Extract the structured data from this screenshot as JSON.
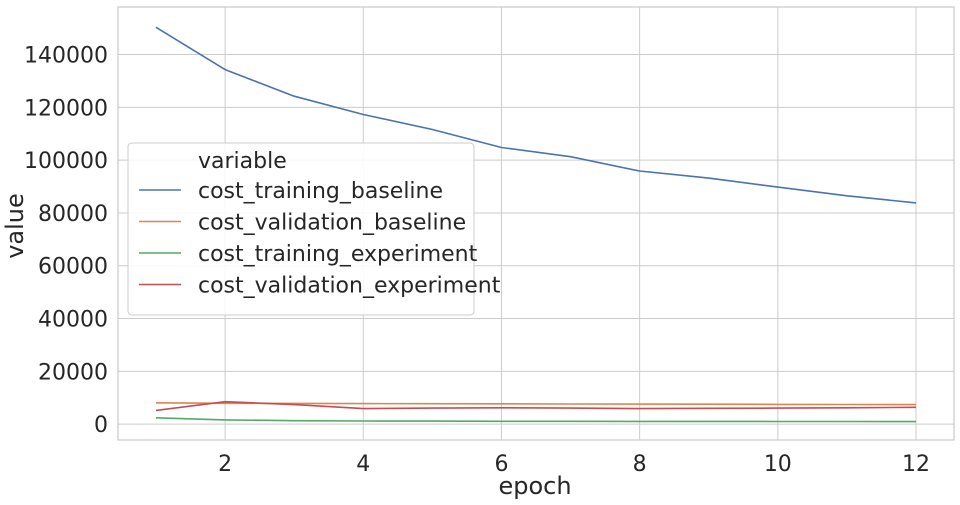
{
  "chart_data": {
    "type": "line",
    "xlabel": "epoch",
    "ylabel": "value",
    "xlim": [
      0.45,
      12.55
    ],
    "ylim": [
      -6000,
      158000
    ],
    "xticks": [
      2,
      4,
      6,
      8,
      10,
      12
    ],
    "xtick_labels": [
      "2",
      "4",
      "6",
      "8",
      "10",
      "12"
    ],
    "yticks": [
      0,
      20000,
      40000,
      60000,
      80000,
      100000,
      120000,
      140000
    ],
    "ytick_labels": [
      "0",
      "20000",
      "40000",
      "60000",
      "80000",
      "100000",
      "120000",
      "140000"
    ],
    "grid": true,
    "legend_title": "variable",
    "legend_placement": "center-left",
    "x": [
      1,
      2,
      3,
      4,
      5,
      6,
      7,
      8,
      9,
      10,
      11,
      12
    ],
    "series": [
      {
        "name": "cost_training_baseline",
        "color": "#4c72b0",
        "values": [
          150300,
          134300,
          124200,
          117300,
          111600,
          104800,
          101300,
          95900,
          93200,
          89800,
          86500,
          83800
        ]
      },
      {
        "name": "cost_validation_baseline",
        "color": "#dd8452",
        "values": [
          8100,
          7900,
          7850,
          7800,
          7750,
          7700,
          7650,
          7600,
          7550,
          7500,
          7450,
          7400
        ]
      },
      {
        "name": "cost_training_experiment",
        "color": "#55a868",
        "values": [
          2400,
          1600,
          1300,
          1200,
          1150,
          1100,
          1080,
          1050,
          1030,
          1010,
          1000,
          980
        ]
      },
      {
        "name": "cost_validation_experiment",
        "color": "#c44e52",
        "values": [
          5200,
          8500,
          7400,
          5900,
          6100,
          6200,
          6100,
          5900,
          6000,
          6100,
          6200,
          6400
        ]
      }
    ]
  }
}
